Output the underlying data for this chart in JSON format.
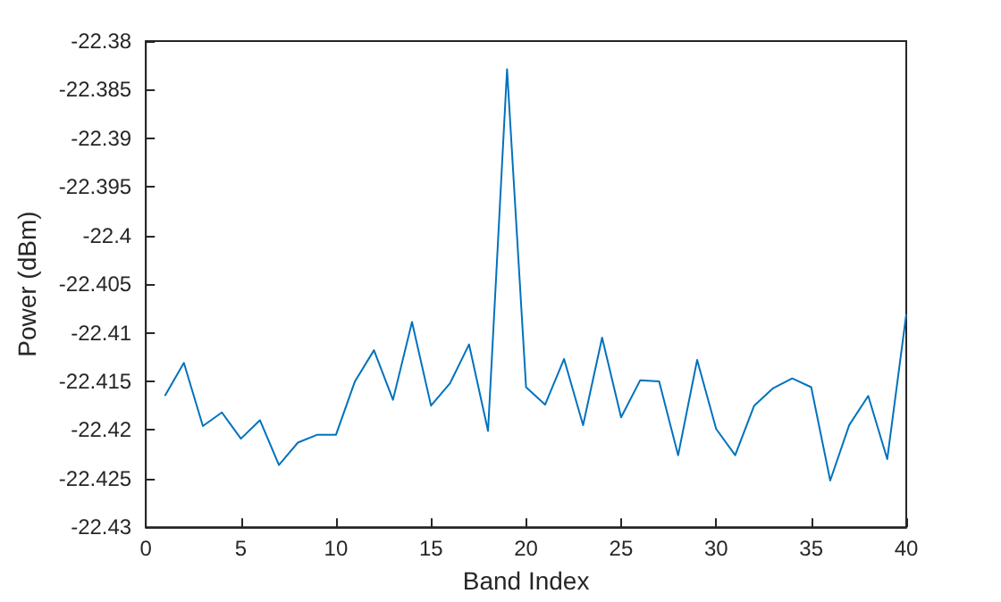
{
  "chart_data": {
    "type": "line",
    "xlabel": "Band Index",
    "ylabel": "Power (dBm)",
    "x": [
      1,
      2,
      3,
      4,
      5,
      6,
      7,
      8,
      9,
      10,
      11,
      12,
      13,
      14,
      15,
      16,
      17,
      18,
      19,
      20,
      21,
      22,
      23,
      24,
      25,
      26,
      27,
      28,
      29,
      30,
      31,
      32,
      33,
      34,
      35,
      36,
      37,
      38,
      39,
      40
    ],
    "series": [
      {
        "color": "#0072bd",
        "values": [
          -22.4165,
          -22.4131,
          -22.4196,
          -22.4182,
          -22.4209,
          -22.419,
          -22.4236,
          -22.4213,
          -22.4205,
          -22.4205,
          -22.415,
          -22.4118,
          -22.4169,
          -22.4089,
          -22.4175,
          -22.4152,
          -22.4112,
          -22.4201,
          -22.3829,
          -22.4156,
          -22.4174,
          -22.4127,
          -22.4195,
          -22.4105,
          -22.4187,
          -22.4149,
          -22.415,
          -22.4226,
          -22.4128,
          -22.4199,
          -22.4226,
          -22.4175,
          -22.4157,
          -22.4147,
          -22.4156,
          -22.4252,
          -22.4195,
          -22.4165,
          -22.423,
          -22.4081
        ]
      }
    ],
    "xlim": [
      0,
      40
    ],
    "xticks": [
      0,
      5,
      10,
      15,
      20,
      25,
      30,
      35,
      40
    ],
    "ylim": [
      -22.43,
      -22.38
    ],
    "yticks": [
      -22.43,
      -22.425,
      -22.42,
      -22.415,
      -22.41,
      -22.405,
      -22.4,
      -22.395,
      -22.39,
      -22.385,
      -22.38
    ],
    "grid": false,
    "marker": "none",
    "line_style": "solid"
  }
}
